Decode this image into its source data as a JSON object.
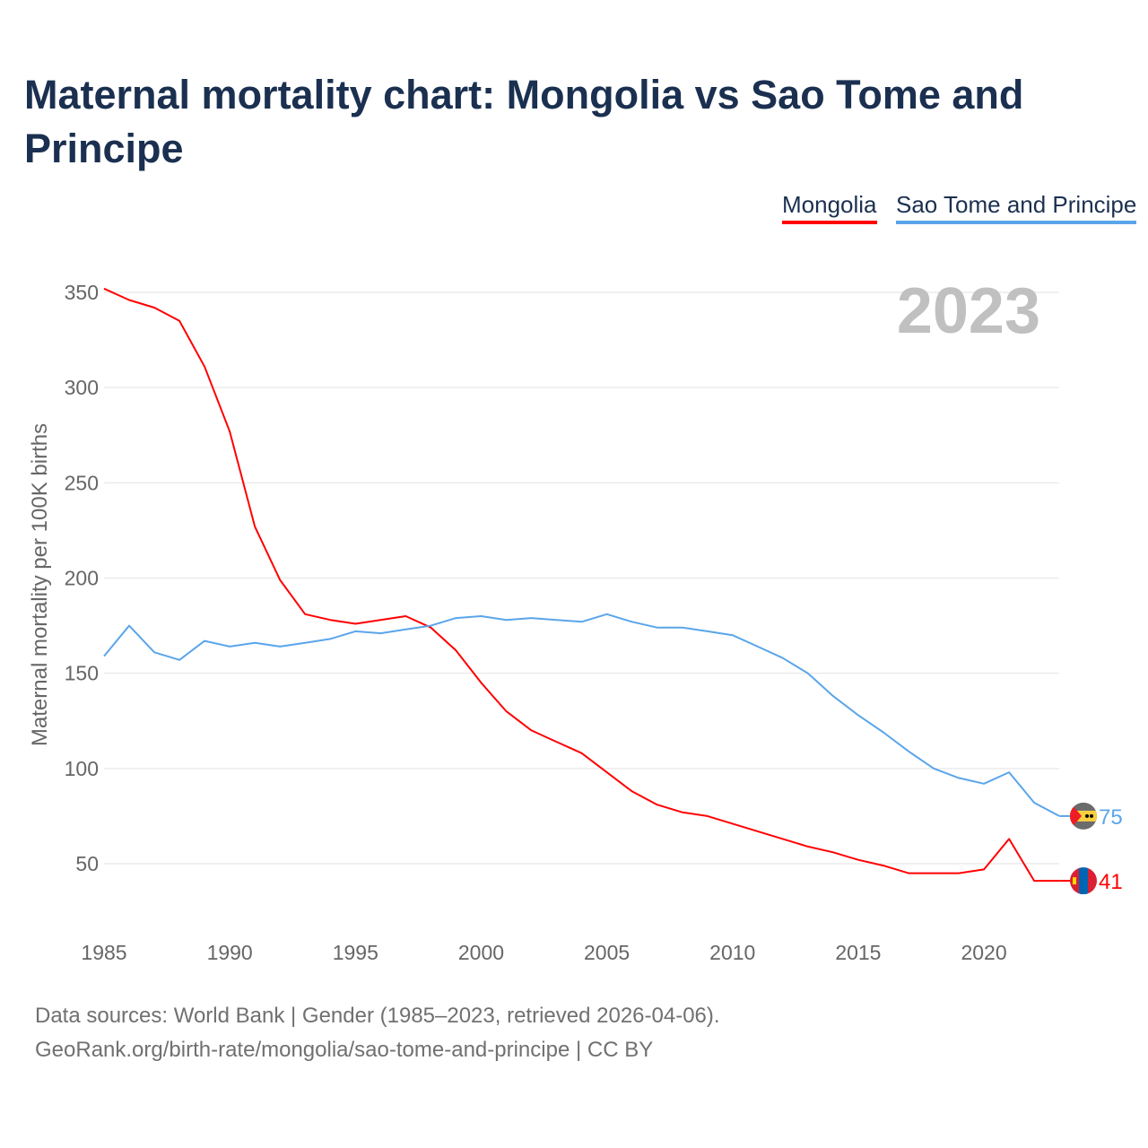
{
  "title": "Maternal mortality chart: Mongolia vs Sao Tome and Principe",
  "chart_data": {
    "type": "line",
    "title": "Maternal mortality chart: Mongolia vs Sao Tome and Principe",
    "xlabel": "",
    "ylabel": "Maternal mortality per 100K births",
    "year_label": "2023",
    "xlim": [
      1985,
      2023
    ],
    "ylim": [
      25,
      355
    ],
    "x_ticks": [
      1985,
      1990,
      1995,
      2000,
      2005,
      2010,
      2015,
      2020
    ],
    "y_ticks": [
      50,
      100,
      150,
      200,
      250,
      300,
      350
    ],
    "grid": true,
    "legend_position": "top-right",
    "x": [
      1985,
      1986,
      1987,
      1988,
      1989,
      1990,
      1991,
      1992,
      1993,
      1994,
      1995,
      1996,
      1997,
      1998,
      1999,
      2000,
      2001,
      2002,
      2003,
      2004,
      2005,
      2006,
      2007,
      2008,
      2009,
      2010,
      2011,
      2012,
      2013,
      2014,
      2015,
      2016,
      2017,
      2018,
      2019,
      2020,
      2021,
      2022,
      2023
    ],
    "series": [
      {
        "name": "Mongolia",
        "color": "#ff0000",
        "end_label": "41",
        "flag": "mongolia-flag",
        "values": [
          352,
          346,
          342,
          335,
          311,
          277,
          227,
          199,
          181,
          178,
          176,
          178,
          180,
          174,
          162,
          145,
          130,
          120,
          114,
          108,
          98,
          88,
          81,
          77,
          75,
          71,
          67,
          63,
          59,
          56,
          52,
          49,
          45,
          45,
          45,
          47,
          63,
          41,
          41
        ]
      },
      {
        "name": "Sao Tome and Principe",
        "color": "#5aa5ea",
        "end_label": "75",
        "flag": "sao-tome-flag",
        "values": [
          159,
          175,
          161,
          157,
          167,
          164,
          166,
          164,
          166,
          168,
          172,
          171,
          173,
          175,
          179,
          180,
          178,
          179,
          178,
          177,
          181,
          177,
          174,
          174,
          172,
          170,
          164,
          158,
          150,
          138,
          128,
          119,
          109,
          100,
          95,
          92,
          98,
          82,
          75
        ]
      }
    ]
  },
  "source": {
    "line1": "Data sources: World Bank | Gender (1985–2023, retrieved 2026-04-06).",
    "line2": "GeoRank.org/birth-rate/mongolia/sao-tome-and-principe | CC BY"
  }
}
